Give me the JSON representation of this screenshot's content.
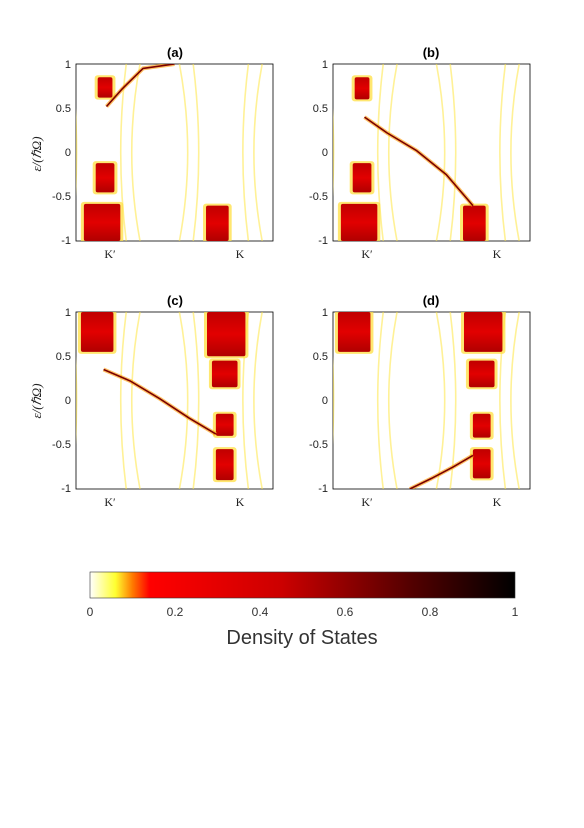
{
  "chart_data": [
    {
      "type": "heatmap",
      "title": "(a)",
      "ylabel": "ε/(ℏΩ)",
      "ylim": [
        -1,
        1
      ],
      "yticks": [
        "1",
        "0.5",
        "0",
        "-0.5",
        "-1"
      ],
      "xticks": [
        "K′",
        "K"
      ],
      "edge_state": {
        "x": [
          0.31,
          0.47,
          0.68,
          1.0
        ],
        "y": [
          0.52,
          0.72,
          0.95,
          1.0
        ]
      },
      "bulk_blocks": [
        {
          "x": [
            0.22,
            0.37
          ],
          "y": [
            0.62,
            0.85
          ]
        },
        {
          "x": [
            0.2,
            0.39
          ],
          "y": [
            -0.45,
            -0.12
          ]
        },
        {
          "x": [
            0.08,
            0.45
          ],
          "y": [
            -1.0,
            -0.58
          ]
        },
        {
          "x": [
            1.32,
            1.55
          ],
          "y": [
            -1.0,
            -0.6
          ]
        }
      ]
    },
    {
      "type": "heatmap",
      "title": "(b)",
      "ylabel": "",
      "ylim": [
        -1,
        1
      ],
      "yticks": [
        "1",
        "0.5",
        "0",
        "-0.5",
        "-1"
      ],
      "xticks": [
        "K′",
        "K"
      ],
      "edge_state": {
        "x": [
          0.32,
          0.55,
          0.85,
          1.15,
          1.42
        ],
        "y": [
          0.4,
          0.22,
          0.02,
          -0.25,
          -0.6
        ]
      },
      "bulk_blocks": [
        {
          "x": [
            0.22,
            0.37
          ],
          "y": [
            0.6,
            0.85
          ]
        },
        {
          "x": [
            0.2,
            0.39
          ],
          "y": [
            -0.45,
            -0.12
          ]
        },
        {
          "x": [
            0.08,
            0.45
          ],
          "y": [
            -1.0,
            -0.58
          ]
        },
        {
          "x": [
            1.32,
            1.55
          ],
          "y": [
            -1.0,
            -0.6
          ]
        }
      ]
    },
    {
      "type": "heatmap",
      "title": "(c)",
      "ylabel": "ε/(ℏΩ)",
      "ylim": [
        -1,
        1
      ],
      "yticks": [
        "1",
        "0.5",
        "0",
        "-0.5",
        "-1"
      ],
      "xticks": [
        "K′",
        "K"
      ],
      "edge_state": {
        "x": [
          0.28,
          0.55,
          0.85,
          1.15,
          1.42
        ],
        "y": [
          0.35,
          0.22,
          0.02,
          -0.2,
          -0.38
        ]
      },
      "bulk_blocks": [
        {
          "x": [
            0.05,
            0.38
          ],
          "y": [
            0.55,
            1.0
          ]
        },
        {
          "x": [
            1.33,
            1.72
          ],
          "y": [
            0.5,
            1.0
          ]
        },
        {
          "x": [
            1.38,
            1.64
          ],
          "y": [
            0.15,
            0.45
          ]
        },
        {
          "x": [
            1.42,
            1.6
          ],
          "y": [
            -0.4,
            -0.15
          ]
        },
        {
          "x": [
            1.42,
            1.6
          ],
          "y": [
            -0.9,
            -0.55
          ]
        }
      ]
    },
    {
      "type": "heatmap",
      "title": "(d)",
      "ylabel": "",
      "ylim": [
        -1,
        1
      ],
      "yticks": [
        "1",
        "0.5",
        "0",
        "-0.5",
        "-1"
      ],
      "xticks": [
        "K′",
        "K"
      ],
      "edge_state": {
        "x": [
          0.78,
          1.0,
          1.22,
          1.42
        ],
        "y": [
          -1.0,
          -0.88,
          -0.75,
          -0.62
        ]
      },
      "bulk_blocks": [
        {
          "x": [
            0.05,
            0.38
          ],
          "y": [
            0.55,
            1.0
          ]
        },
        {
          "x": [
            1.33,
            1.72
          ],
          "y": [
            0.55,
            1.0
          ]
        },
        {
          "x": [
            1.38,
            1.64
          ],
          "y": [
            0.15,
            0.45
          ]
        },
        {
          "x": [
            1.42,
            1.6
          ],
          "y": [
            -0.42,
            -0.15
          ]
        },
        {
          "x": [
            1.42,
            1.6
          ],
          "y": [
            -0.88,
            -0.55
          ]
        }
      ]
    }
  ],
  "colorbar": {
    "label": "Density of States",
    "ticks": [
      "0",
      "0.2",
      "0.4",
      "0.6",
      "0.8",
      "1"
    ],
    "range": [
      0,
      1
    ]
  }
}
